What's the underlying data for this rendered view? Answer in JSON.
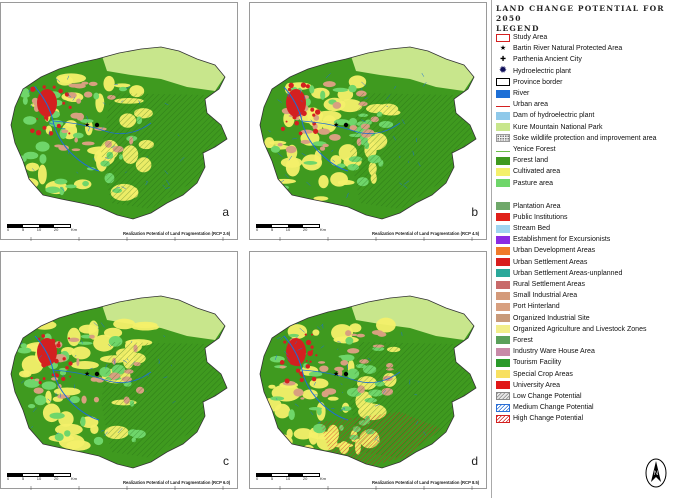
{
  "panels": [
    {
      "letter": "a",
      "caption": "Realization Potential of Land Fragmentation (RCP 2.6)",
      "scale": [
        "0",
        "5",
        "10",
        "20",
        "Km"
      ]
    },
    {
      "letter": "b",
      "caption": "Realization Potential of Land Fragmentation (RCP 4.5)",
      "scale": [
        "0",
        "5",
        "10",
        "20",
        "Km"
      ]
    },
    {
      "letter": "c",
      "caption": "Realization Potential of Land Fragmentation (RCP 6.0)",
      "scale": [
        "0",
        "5",
        "10",
        "20",
        "Km"
      ]
    },
    {
      "letter": "d",
      "caption": "Realization Potential of Land Fragmentation (RCP 8.5)",
      "scale": [
        "0",
        "5",
        "10",
        "20",
        "Km"
      ]
    }
  ],
  "legend": {
    "title_line1": "LAND CHANGE POTENTIAL FOR 2050",
    "title_line2": "LEGEND",
    "group1": [
      {
        "label": "Study Area",
        "color": "#ffffff",
        "border": "#d32020",
        "kind": "box"
      },
      {
        "label": "Bartin River Natural Protected Area",
        "color": "#000000",
        "kind": "star"
      },
      {
        "label": "Parthenia Ancient City",
        "color": "#000000",
        "kind": "cross"
      },
      {
        "label": "Hydroelectric plant",
        "color": "#10105a",
        "kind": "burst"
      },
      {
        "label": "Province border",
        "color": "#ffffff",
        "border": "#000000",
        "kind": "box"
      },
      {
        "label": "River",
        "color": "#1d6fd6",
        "kind": "fill"
      },
      {
        "label": "Urban area",
        "color": "#d32020",
        "kind": "line"
      },
      {
        "label": "Dam of hydroelectric plant",
        "color": "#8fc9ea",
        "kind": "fill"
      },
      {
        "label": "Kure Mountain National Park",
        "color": "#c8e68c",
        "kind": "fill"
      },
      {
        "label": "Soke wildlife protection and improvement area",
        "color": "#e8e8e8",
        "kind": "dots"
      },
      {
        "label": "Yenice Forest",
        "color": "#6cbf4a",
        "kind": "line"
      },
      {
        "label": "Forest land",
        "color": "#3f9a1f",
        "kind": "fill"
      },
      {
        "label": "Cultivated area",
        "color": "#f4f06a",
        "kind": "fill"
      },
      {
        "label": "Pasture area",
        "color": "#6fd66a",
        "kind": "fill"
      }
    ],
    "group2": [
      {
        "label": "Plantation Area",
        "color": "#6fa86a",
        "kind": "fill"
      },
      {
        "label": "Public Institutions",
        "color": "#e0201a",
        "kind": "fill"
      },
      {
        "label": "Stream Bed",
        "color": "#9fd4f0",
        "kind": "fill"
      },
      {
        "label": "Establishment for Excursionists",
        "color": "#8a2be2",
        "kind": "fill"
      },
      {
        "label": "Urban Development Areas",
        "color": "#f07a2a",
        "kind": "fill"
      },
      {
        "label": "Urban Settlement Areas",
        "color": "#d81e1e",
        "kind": "fill"
      },
      {
        "label": "Urban Settlement Areas-unplanned",
        "color": "#2aa89a",
        "kind": "fill"
      },
      {
        "label": "Rural Settlement Areas",
        "color": "#c86a6a",
        "kind": "fill"
      },
      {
        "label": "Small Industrial Area",
        "color": "#d49a7a",
        "kind": "fill"
      },
      {
        "label": "Port Hinterland",
        "color": "#d8a080",
        "kind": "fill"
      },
      {
        "label": "Organized Industrial Site",
        "color": "#c89a7a",
        "kind": "fill"
      },
      {
        "label": "Organized Agriculture and Livestock Zones",
        "color": "#f2ee8a",
        "kind": "fill"
      },
      {
        "label": "Forest",
        "color": "#5aa05a",
        "kind": "fill"
      },
      {
        "label": "Industry Ware House Area",
        "color": "#c88aa8",
        "kind": "fill"
      },
      {
        "label": "Tourism Facility",
        "color": "#2a9a2a",
        "kind": "fill"
      },
      {
        "label": "Special Crop Areas",
        "color": "#f8e060",
        "kind": "fill"
      },
      {
        "label": "University Area",
        "color": "#e01818",
        "kind": "fill"
      },
      {
        "label": "Low Change Potential",
        "color": "#e6e6e6",
        "stripe": "#888888",
        "kind": "hatch"
      },
      {
        "label": "Medium Change Potential",
        "color": "#ffffff",
        "stripe": "#2a6fd6",
        "kind": "hatch"
      },
      {
        "label": "High Change Potential",
        "color": "#ffffff",
        "stripe": "#d32020",
        "border": "#d32020",
        "kind": "hatch"
      }
    ]
  },
  "north_arrow": {
    "label": "N"
  },
  "colors": {
    "forest": "#3f9a1f",
    "pasture": "#6fd66a",
    "cultivated": "#f4f06a",
    "kure": "#c8e68c",
    "urban": "#d32020",
    "river": "#1d6fd6",
    "rural": "#c86a6a",
    "plantation": "#6fa86a"
  }
}
